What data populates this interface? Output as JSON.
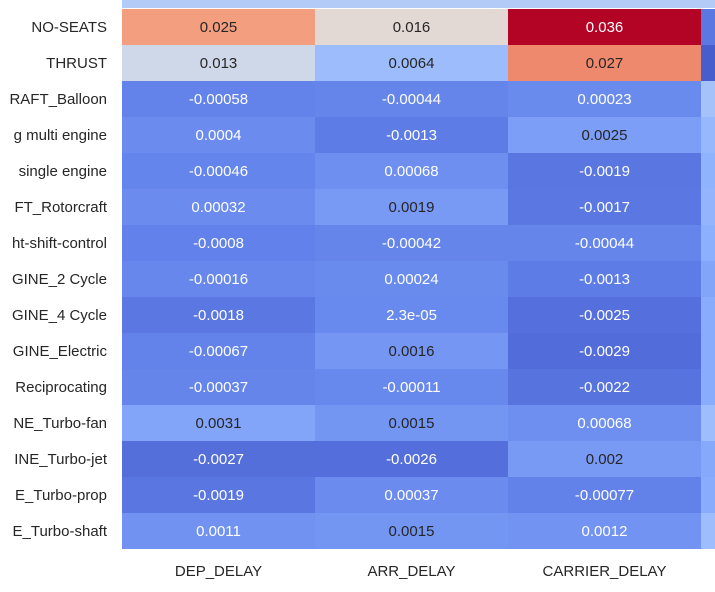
{
  "chart_data": {
    "type": "heatmap",
    "title": "",
    "xlabel": "",
    "ylabel": "",
    "columns": [
      "DEP_DELAY",
      "ARR_DELAY",
      "CARRIER_DELAY"
    ],
    "rows": [
      "NO-SEATS",
      "THRUST",
      "RAFT_Balloon",
      "g multi engine",
      "single engine",
      "FT_Rotorcraft",
      "ht-shift-control",
      "GINE_2 Cycle",
      "GINE_4 Cycle",
      "GINE_Electric",
      "Reciprocating",
      "NE_Turbo-fan",
      "INE_Turbo-jet",
      "E_Turbo-prop",
      "E_Turbo-shaft"
    ],
    "labels": [
      [
        "0.025",
        "0.016",
        "0.036"
      ],
      [
        "0.013",
        "0.0064",
        "0.027"
      ],
      [
        "-0.00058",
        "-0.00044",
        "0.00023"
      ],
      [
        "0.0004",
        "-0.0013",
        "0.0025"
      ],
      [
        "-0.00046",
        "0.00068",
        "-0.0019"
      ],
      [
        "0.00032",
        "0.0019",
        "-0.0017"
      ],
      [
        "-0.0008",
        "-0.00042",
        "-0.00044"
      ],
      [
        "-0.00016",
        "0.00024",
        "-0.0013"
      ],
      [
        "-0.0018",
        "2.3e-05",
        "-0.0025"
      ],
      [
        "-0.00067",
        "0.0016",
        "-0.0029"
      ],
      [
        "-0.00037",
        "-0.00011",
        "-0.0022"
      ],
      [
        "0.0031",
        "0.0015",
        "0.00068"
      ],
      [
        "-0.0027",
        "-0.0026",
        "0.002"
      ],
      [
        "-0.0019",
        "0.00037",
        "-0.00077"
      ],
      [
        "0.0011",
        "0.0015",
        "0.0012"
      ]
    ],
    "values": [
      [
        0.025,
        0.016,
        0.036
      ],
      [
        0.013,
        0.0064,
        0.027
      ],
      [
        -0.00058,
        -0.00044,
        0.00023
      ],
      [
        0.0004,
        -0.0013,
        0.0025
      ],
      [
        -0.00046,
        0.00068,
        -0.0019
      ],
      [
        0.00032,
        0.0019,
        -0.0017
      ],
      [
        -0.0008,
        -0.00042,
        -0.00044
      ],
      [
        -0.00016,
        0.00024,
        -0.0013
      ],
      [
        -0.0018,
        2.3e-05,
        -0.0025
      ],
      [
        -0.00067,
        0.0016,
        -0.0029
      ],
      [
        -0.00037,
        -0.00011,
        -0.0022
      ],
      [
        0.0031,
        0.0015,
        0.00068
      ],
      [
        -0.0027,
        -0.0026,
        0.002
      ],
      [
        -0.0019,
        0.00037,
        -0.00077
      ],
      [
        0.0011,
        0.0015,
        0.0012
      ]
    ],
    "colormap": "coolwarm",
    "value_range": [
      -0.006,
      0.036
    ],
    "colorbar": false
  }
}
